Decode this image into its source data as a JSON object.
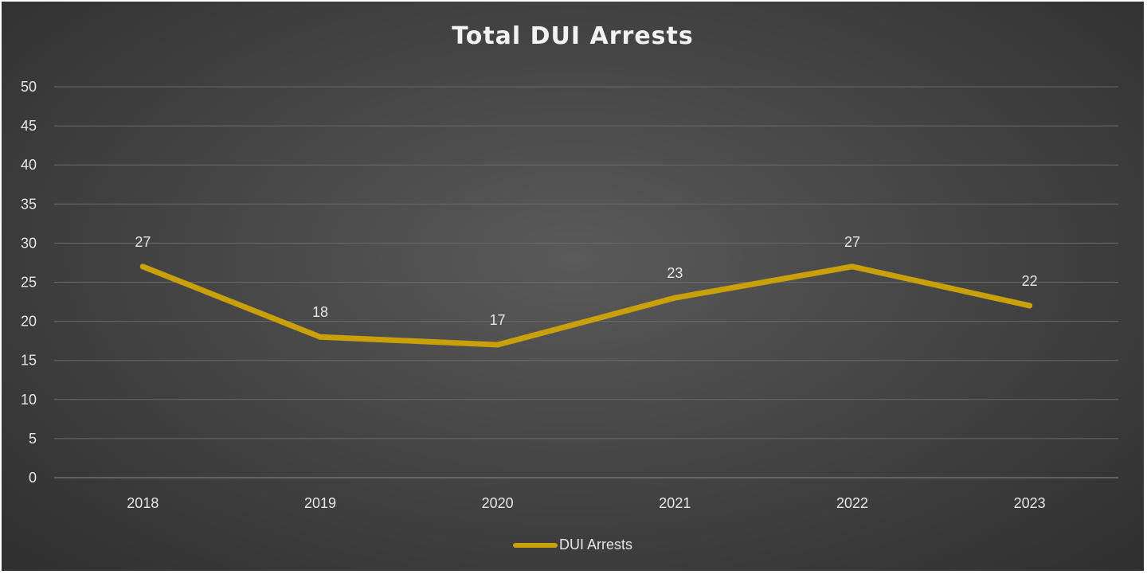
{
  "chart_data": {
    "type": "line",
    "title": "Total DUI Arrests",
    "xlabel": "",
    "ylabel": "",
    "categories": [
      "2018",
      "2019",
      "2020",
      "2021",
      "2022",
      "2023"
    ],
    "series": [
      {
        "name": "DUI Arrests",
        "values": [
          27,
          18,
          17,
          23,
          27,
          22
        ],
        "color": "#c9a007"
      }
    ],
    "ylim": [
      0,
      50
    ],
    "yticks": [
      "0",
      "5",
      "10",
      "15",
      "20",
      "25",
      "30",
      "35",
      "40",
      "45",
      "50"
    ],
    "grid": true,
    "legend": "bottom-center",
    "data_labels": true
  }
}
